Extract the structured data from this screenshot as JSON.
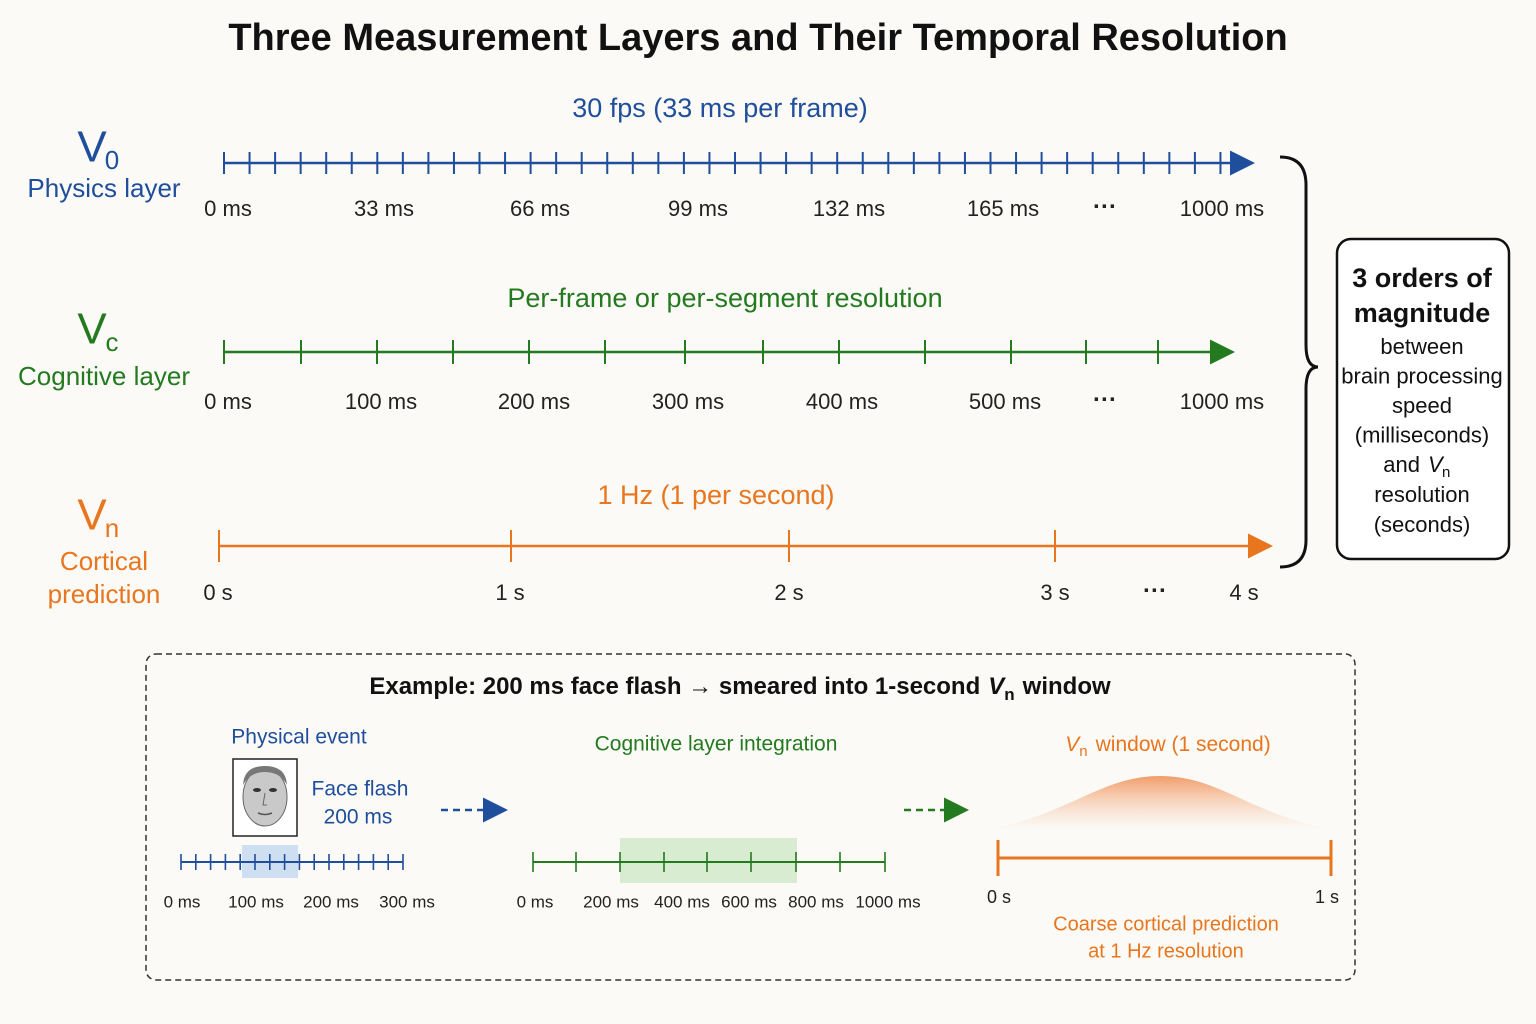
{
  "title": "Three Measurement Layers and Their Temporal Resolution",
  "layers": [
    {
      "symbol": "V",
      "subscript": "0",
      "name_lines": [
        "Physics layer"
      ],
      "caption": "30 fps (33 ms per frame)",
      "ticks": [
        "0 ms",
        "33 ms",
        "66 ms",
        "99 ms",
        "132 ms",
        "165 ms",
        "1000 ms"
      ],
      "ellipsis": "···"
    },
    {
      "symbol": "V",
      "subscript": "c",
      "name_lines": [
        "Cognitive layer"
      ],
      "caption": "Per-frame or per-segment resolution",
      "ticks": [
        "0 ms",
        "100 ms",
        "200 ms",
        "300 ms",
        "400 ms",
        "500 ms",
        "1000 ms"
      ],
      "ellipsis": "···"
    },
    {
      "symbol": "V",
      "subscript": "n",
      "name_lines": [
        "Cortical",
        "prediction"
      ],
      "caption": "1 Hz (1 per second)",
      "ticks": [
        "0 s",
        "1 s",
        "2 s",
        "3 s",
        "4 s"
      ],
      "ellipsis": "···"
    }
  ],
  "summary": {
    "heading_lines": [
      "3 orders of",
      "magnitude"
    ],
    "body_lines": [
      "between",
      "brain processing",
      "speed",
      "(milliseconds)"
    ],
    "and": "and",
    "v": "V",
    "v_sub": "n",
    "body_lines_2": [
      "resolution",
      "(seconds)"
    ]
  },
  "example": {
    "title_a": "Example: 200 ms face flash → smeared into 1-second",
    "title_v": "V",
    "title_sub": "n",
    "title_b": "window",
    "physical": {
      "heading": "Physical event",
      "label_lines": [
        "Face flash",
        "200 ms"
      ],
      "ticks": [
        "0 ms",
        "100 ms",
        "200 ms",
        "300 ms"
      ]
    },
    "cognitive": {
      "heading": "Cognitive layer integration",
      "ticks": [
        "0 ms",
        "200 ms",
        "400 ms",
        "600 ms",
        "800 ms",
        "1000 ms"
      ]
    },
    "cortical": {
      "heading_v": "V",
      "heading_sub": "n",
      "heading": "window (1 second)",
      "ticks": [
        "0 s",
        "1 s"
      ],
      "caption_lines": [
        "Coarse cortical prediction",
        "at 1 Hz resolution"
      ]
    }
  }
}
